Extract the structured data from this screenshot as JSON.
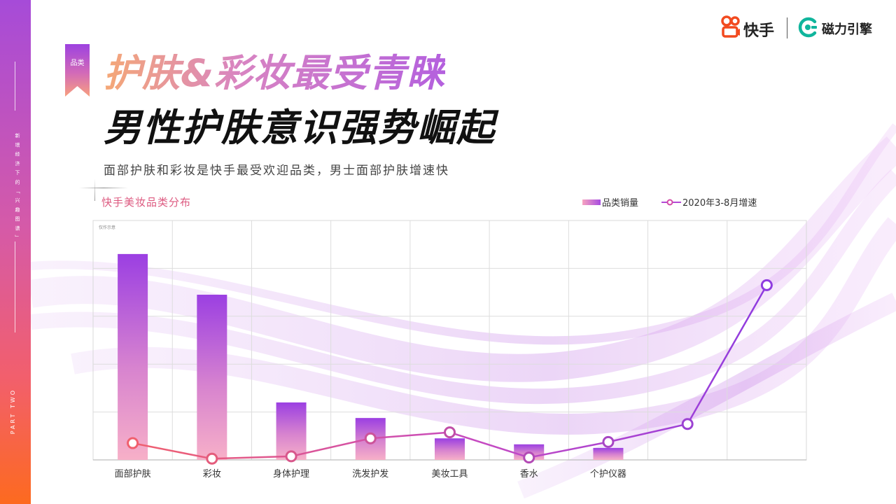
{
  "sidebar": {
    "vertical_text": "新 增 经 济 下 的 「 兴 趣 图 谱 」",
    "part_label": "PART TWO"
  },
  "tag": {
    "label": "品类"
  },
  "header": {
    "title_line1": "护肤&彩妆最受青睐",
    "title_line2": "男性护肤意识强势崛起",
    "subtitle": "面部护肤和彩妆是快手最受欢迎品类，男士面部护肤增速快"
  },
  "logos": {
    "kuaishou": "快手",
    "cili": "磁力引擎",
    "kuaishou_icon": "kuaishou-logo-icon",
    "cili_icon": "cili-engine-logo-icon"
  },
  "chart_data": {
    "type": "bar",
    "title": "快手美妆品类分布",
    "note": "仅作示意",
    "categories": [
      "面部护肤",
      "彩妆",
      "身体护理",
      "洗发护发",
      "美妆工具",
      "香水",
      "个护仪器",
      "",
      ""
    ],
    "series": [
      {
        "name": "品类销量",
        "kind": "bar",
        "values": [
          86,
          69,
          24,
          17.5,
          9,
          6.5,
          5,
          null,
          null
        ]
      },
      {
        "name": "2020年3-8月增速",
        "kind": "line",
        "values": [
          7,
          0.5,
          1.5,
          9,
          11.5,
          1,
          7.5,
          15,
          73
        ]
      }
    ],
    "ylim": [
      0,
      100
    ],
    "grid": true,
    "legend_position": "top-right",
    "colors": {
      "bar_top": "#9b3fe2",
      "bar_bottom": "#f7b0c8",
      "line_start": "#f0606e",
      "line_end": "#8f3ce0",
      "marker_fill": "#ffffff"
    }
  }
}
